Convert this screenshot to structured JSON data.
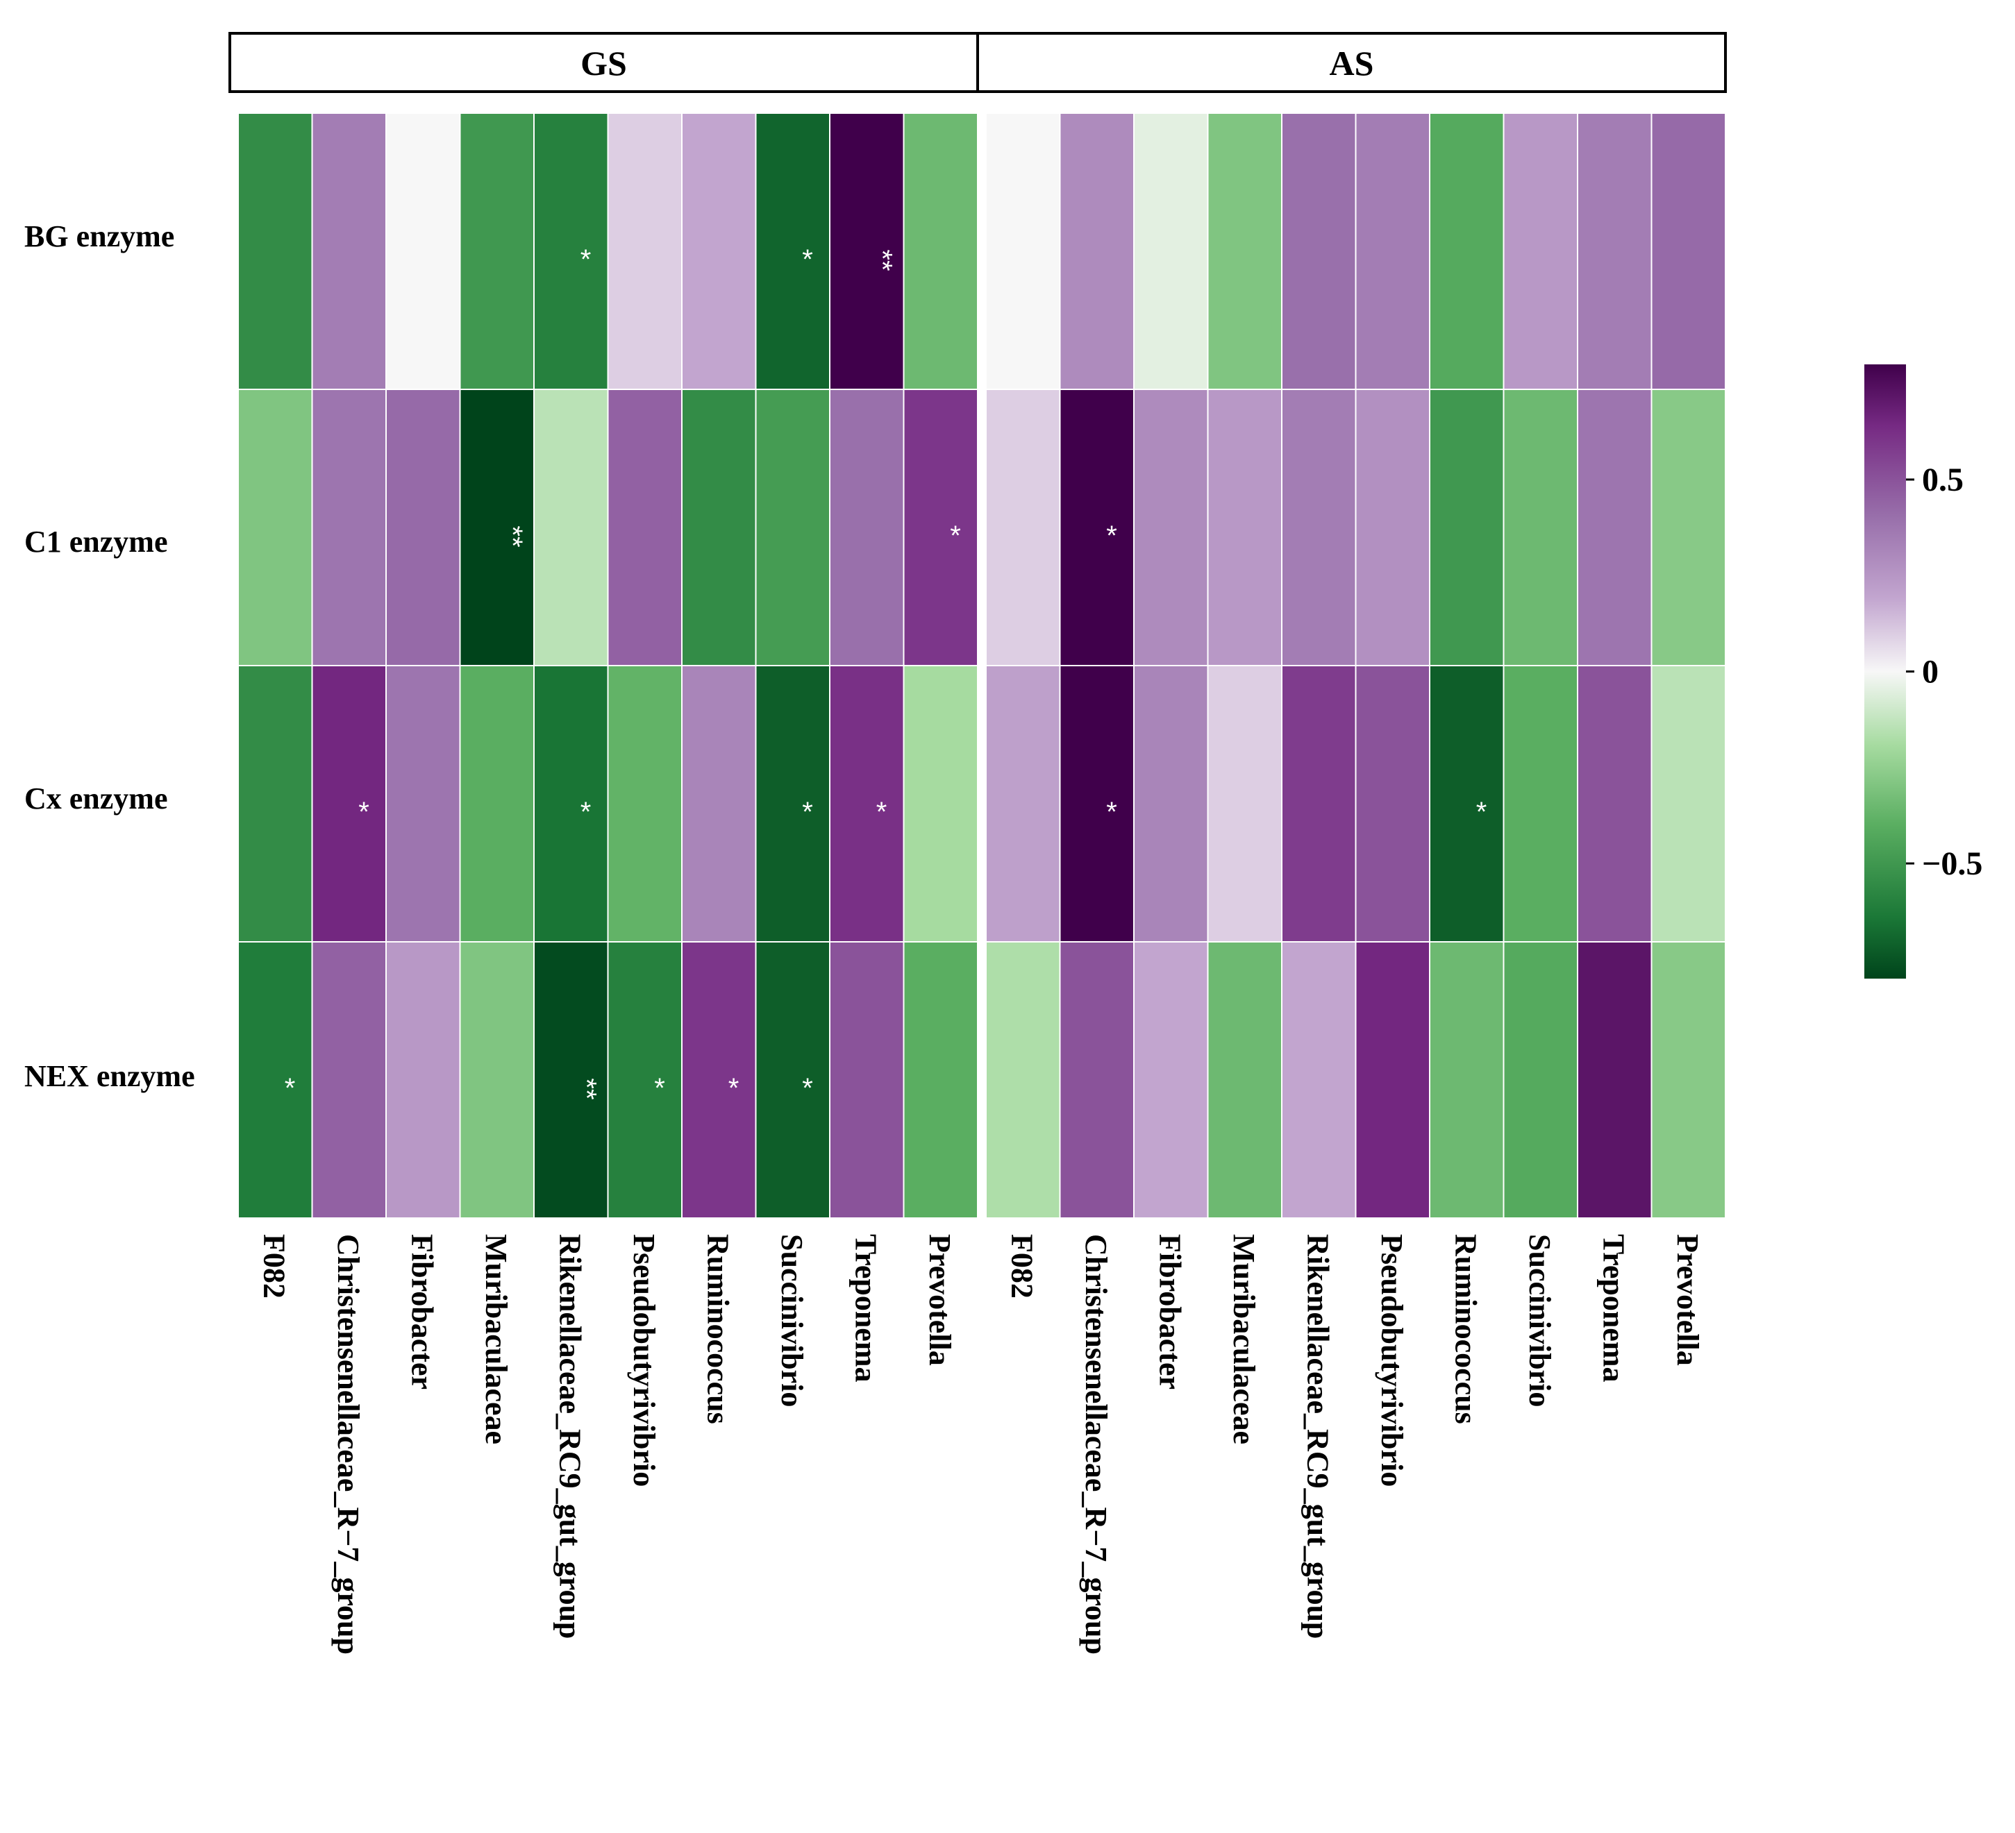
{
  "chart_data": {
    "type": "heatmap",
    "panels": [
      {
        "name": "GS",
        "columns": [
          "F082",
          "Christensenellaceae_R−7_group",
          "Fibrobacter",
          "Muribaculaceae",
          "Rikenellaceae_RC9_gut_group",
          "Pseudobutyrivibrio",
          "Ruminococcus",
          "Succinivibrio",
          "Treponema",
          "Prevotella"
        ],
        "rows": [
          "BG enzyme",
          "C1 enzyme",
          "Cx enzyme",
          "NEX enzyme"
        ],
        "values": [
          [
            -0.55,
            0.35,
            0.0,
            -0.5,
            -0.6,
            0.1,
            0.2,
            -0.7,
            0.8,
            -0.35
          ],
          [
            -0.3,
            0.38,
            0.42,
            -0.8,
            -0.15,
            0.45,
            -0.55,
            -0.48,
            0.4,
            0.6
          ],
          [
            -0.55,
            0.65,
            0.38,
            -0.4,
            -0.65,
            -0.38,
            0.32,
            -0.72,
            0.62,
            -0.2
          ],
          [
            -0.62,
            0.45,
            0.25,
            -0.3,
            -0.78,
            -0.6,
            0.6,
            -0.72,
            0.5,
            -0.4
          ]
        ],
        "significance": [
          [
            "",
            "",
            "",
            "",
            "*",
            "",
            "",
            "*",
            "**",
            ""
          ],
          [
            "",
            "",
            "",
            "**",
            "",
            "",
            "",
            "",
            "",
            "*"
          ],
          [
            "",
            "*",
            "",
            "",
            "*",
            "",
            "",
            "*",
            "*",
            ""
          ],
          [
            "*",
            "",
            "",
            "",
            "**",
            "*",
            "*",
            "*",
            "",
            ""
          ]
        ]
      },
      {
        "name": "AS",
        "columns": [
          "F082",
          "Christensenellaceae_R−7_group",
          "Fibrobacter",
          "Muribaculaceae",
          "Rikenellaceae_RC9_gut_group",
          "Pseudobutyrivibrio",
          "Ruminococcus",
          "Succinivibrio",
          "Treponema",
          "Prevotella"
        ],
        "rows": [
          "BG enzyme",
          "C1 enzyme",
          "Cx enzyme",
          "NEX enzyme"
        ],
        "values": [
          [
            0.0,
            0.3,
            -0.05,
            -0.3,
            0.4,
            0.35,
            -0.42,
            0.25,
            0.35,
            0.42
          ],
          [
            0.1,
            0.8,
            0.3,
            0.25,
            0.35,
            0.28,
            -0.5,
            -0.35,
            0.38,
            -0.28
          ],
          [
            0.22,
            0.8,
            0.32,
            0.1,
            0.58,
            0.5,
            -0.72,
            -0.4,
            0.5,
            -0.15
          ],
          [
            -0.18,
            0.5,
            0.2,
            -0.35,
            0.2,
            0.65,
            -0.35,
            -0.42,
            0.72,
            -0.28
          ]
        ],
        "significance": [
          [
            "",
            "",
            "",
            "",
            "",
            "",
            "",
            "",
            "",
            ""
          ],
          [
            "",
            "*",
            "",
            "",
            "",
            "",
            "",
            "",
            "",
            ""
          ],
          [
            "",
            "*",
            "",
            "",
            "",
            "",
            "*",
            "",
            "",
            ""
          ],
          [
            "",
            "",
            "",
            "",
            "",
            "",
            "",
            "",
            "",
            ""
          ]
        ]
      }
    ],
    "colorbar": {
      "range": [
        -0.8,
        0.8
      ],
      "ticks": [
        0.5,
        0,
        -0.5
      ],
      "tick_labels": [
        "0.5",
        "0",
        "−0.5"
      ],
      "low_color": "#00441b",
      "mid_color": "#f7f7f7",
      "high_color": "#40004b"
    }
  }
}
